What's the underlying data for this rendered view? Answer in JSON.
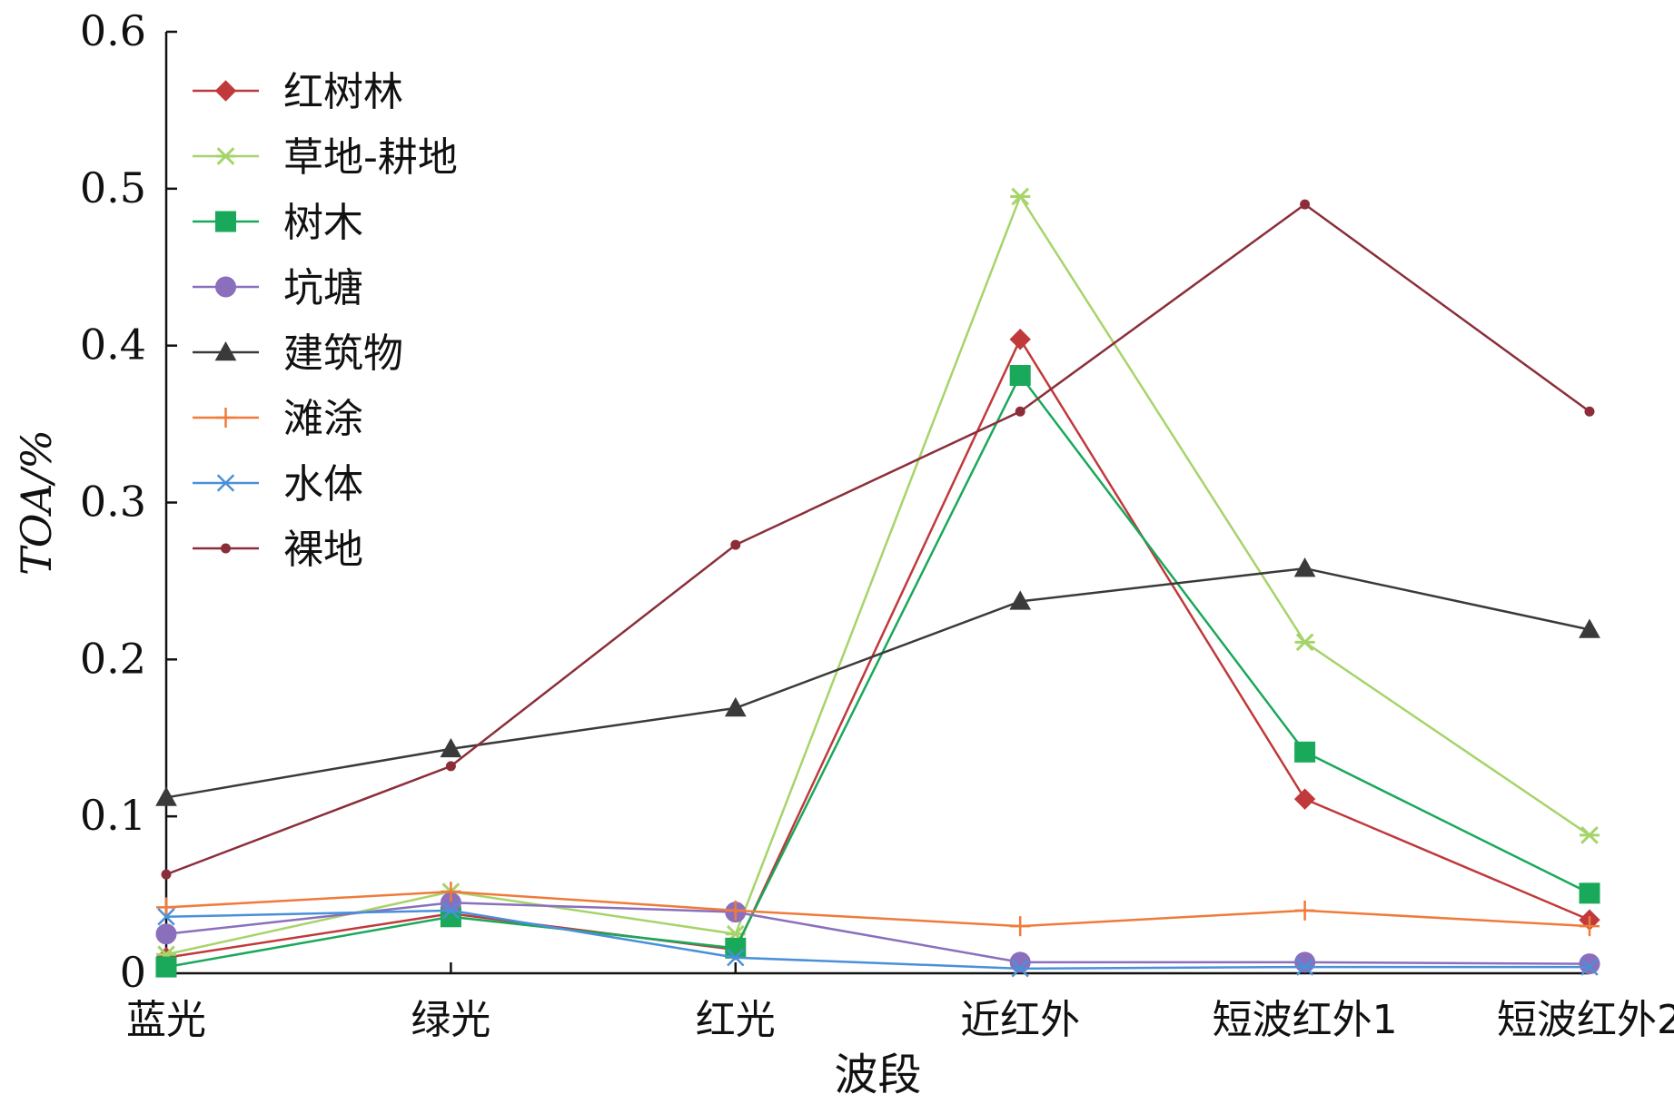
{
  "chart_data": {
    "type": "line",
    "title": "",
    "xlabel": "波段",
    "ylabel": "TOA/%",
    "ylim": [
      0,
      0.6
    ],
    "yticks": [
      "0",
      "0.1",
      "0.2",
      "0.3",
      "0.4",
      "0.5",
      "0.6"
    ],
    "categories": [
      "蓝光",
      "绿光",
      "红光",
      "近红外",
      "短波红外1",
      "短波红外2"
    ],
    "legend_position": "top-left",
    "grid": false,
    "series": [
      {
        "name": "红树林",
        "color": "#c0393b",
        "marker": "diamond",
        "values": [
          0.01,
          0.038,
          0.015,
          0.404,
          0.111,
          0.034
        ]
      },
      {
        "name": "草地-耕地",
        "color": "#a6d46a",
        "marker": "asterisk",
        "values": [
          0.012,
          0.052,
          0.025,
          0.495,
          0.211,
          0.088
        ]
      },
      {
        "name": "树木",
        "color": "#1aa85a",
        "marker": "square",
        "values": [
          0.004,
          0.036,
          0.016,
          0.381,
          0.141,
          0.051
        ]
      },
      {
        "name": "坑塘",
        "color": "#8a6fbd",
        "marker": "circle",
        "values": [
          0.025,
          0.045,
          0.039,
          0.007,
          0.007,
          0.006
        ]
      },
      {
        "name": "建筑物",
        "color": "#3a3a3a",
        "marker": "triangle",
        "values": [
          0.112,
          0.143,
          0.169,
          0.237,
          0.258,
          0.219
        ]
      },
      {
        "name": "滩涂",
        "color": "#f07a3a",
        "marker": "plus",
        "values": [
          0.042,
          0.052,
          0.04,
          0.03,
          0.04,
          0.03
        ]
      },
      {
        "name": "水体",
        "color": "#4a90d9",
        "marker": "x",
        "values": [
          0.036,
          0.04,
          0.01,
          0.003,
          0.004,
          0.004
        ]
      },
      {
        "name": "裸地",
        "color": "#8b2e3a",
        "marker": "dot",
        "values": [
          0.063,
          0.132,
          0.273,
          0.358,
          0.49,
          0.358
        ]
      }
    ]
  }
}
